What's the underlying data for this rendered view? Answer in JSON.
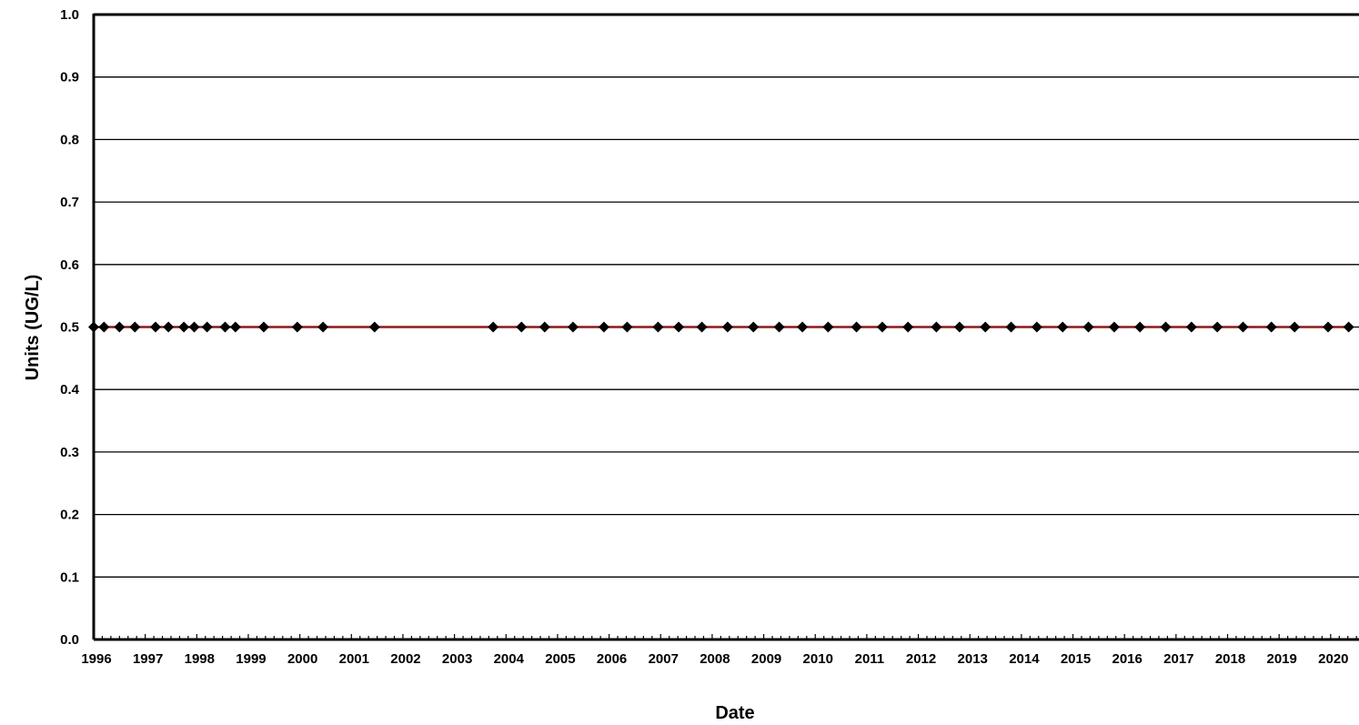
{
  "chart_data": {
    "type": "line",
    "title": "",
    "xlabel": "Date",
    "ylabel": "Units (UG/L)",
    "xlim": [
      1996,
      2020.55
    ],
    "ylim": [
      0,
      1
    ],
    "x_ticks": [
      "1996",
      "1997",
      "1998",
      "1999",
      "2000",
      "2001",
      "2002",
      "2003",
      "2004",
      "2005",
      "2006",
      "2007",
      "2008",
      "2009",
      "2010",
      "2011",
      "2012",
      "2013",
      "2014",
      "2015",
      "2016",
      "2017",
      "2018",
      "2019",
      "2020"
    ],
    "y_ticks": [
      "0.0",
      "0.1",
      "0.2",
      "0.3",
      "0.4",
      "0.5",
      "0.6",
      "0.7",
      "0.8",
      "0.9",
      "1.0"
    ],
    "grid": "horizontal",
    "legend": "none",
    "series": [
      {
        "marker": "diamond",
        "marker_color": "#000000",
        "line_color": "#8b1a1a",
        "x": [
          1996.0,
          1996.2,
          1996.5,
          1996.8,
          1997.2,
          1997.45,
          1997.75,
          1997.95,
          1998.2,
          1998.55,
          1998.75,
          1999.3,
          1999.95,
          2000.45,
          2001.45,
          2003.75,
          2004.3,
          2004.75,
          2005.3,
          2005.9,
          2006.35,
          2006.95,
          2007.35,
          2007.8,
          2008.3,
          2008.8,
          2009.3,
          2009.75,
          2010.25,
          2010.8,
          2011.3,
          2011.8,
          2012.35,
          2012.8,
          2013.3,
          2013.8,
          2014.3,
          2014.8,
          2015.3,
          2015.8,
          2016.3,
          2016.8,
          2017.3,
          2017.8,
          2018.3,
          2018.85,
          2019.3,
          2019.95,
          2020.35
        ],
        "y": [
          0.5,
          0.5,
          0.5,
          0.5,
          0.5,
          0.5,
          0.5,
          0.5,
          0.5,
          0.5,
          0.5,
          0.5,
          0.5,
          0.5,
          0.5,
          0.5,
          0.5,
          0.5,
          0.5,
          0.5,
          0.5,
          0.5,
          0.5,
          0.5,
          0.5,
          0.5,
          0.5,
          0.5,
          0.5,
          0.5,
          0.5,
          0.5,
          0.5,
          0.5,
          0.5,
          0.5,
          0.5,
          0.5,
          0.5,
          0.5,
          0.5,
          0.5,
          0.5,
          0.5,
          0.5,
          0.5,
          0.5,
          0.5,
          0.5
        ]
      }
    ]
  }
}
